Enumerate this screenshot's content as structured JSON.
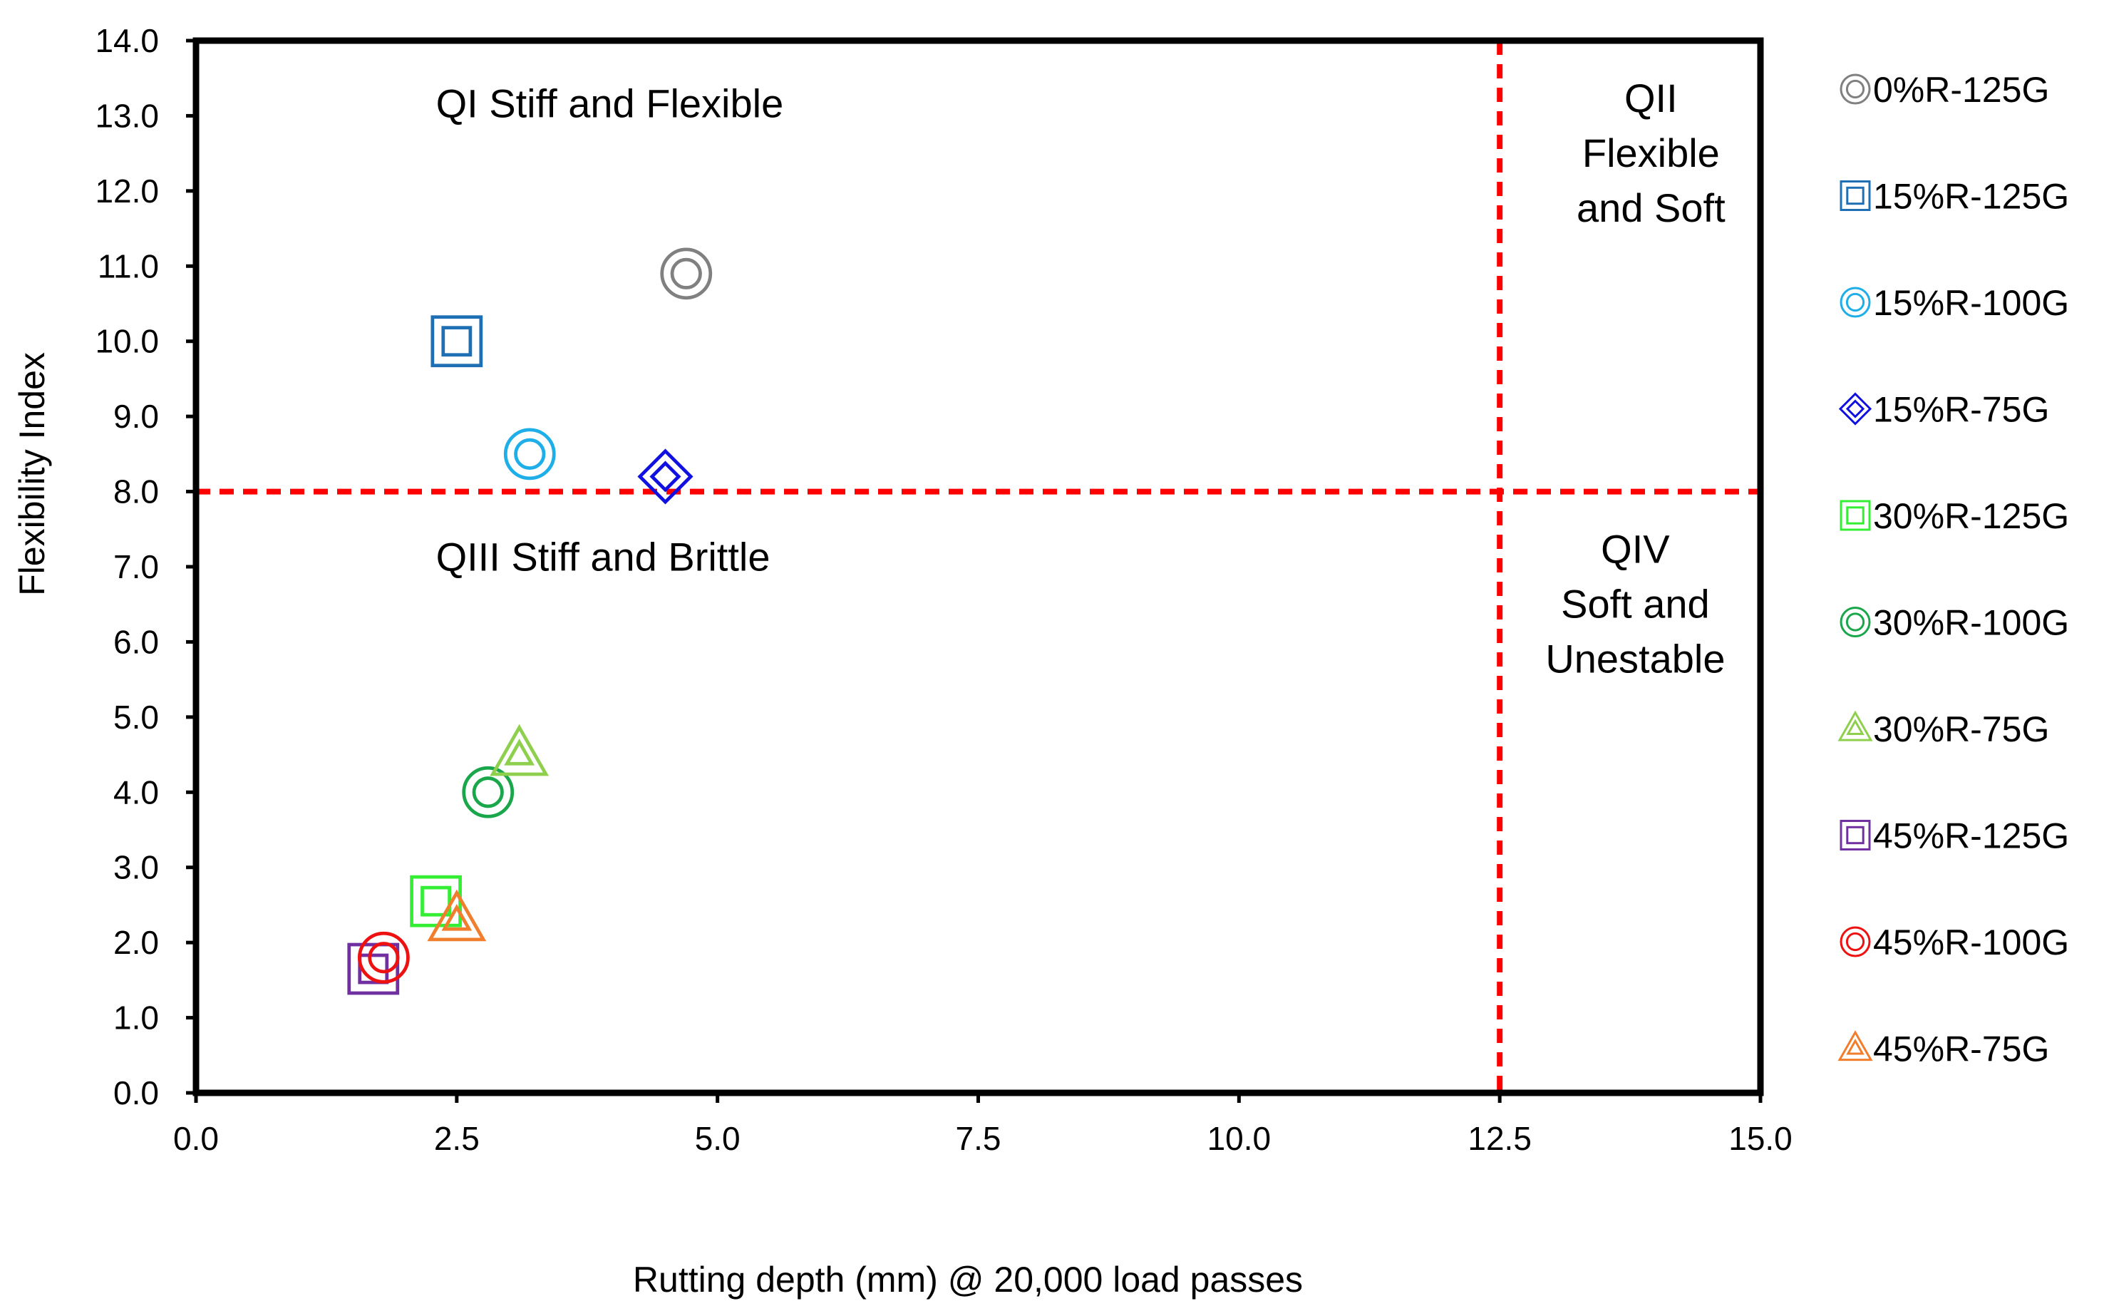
{
  "chart_data": {
    "type": "scatter",
    "title": "",
    "xlabel": "Rutting depth (mm) @ 20,000 load passes",
    "ylabel": "Flexibility Index",
    "xlim": [
      0,
      15
    ],
    "ylim": [
      0,
      14
    ],
    "xticks": [
      0,
      2.5,
      5,
      7.5,
      10,
      12.5,
      15
    ],
    "yticks": [
      0,
      1,
      2,
      3,
      4,
      5,
      6,
      7,
      8,
      9,
      10,
      11,
      12,
      13,
      14
    ],
    "x_tick_labels": [
      "0.0",
      "2.5",
      "5.0",
      "7.5",
      "10.0",
      "12.5",
      "15.0"
    ],
    "y_tick_labels": [
      "0.0",
      "1.0",
      "2.0",
      "3.0",
      "4.0",
      "5.0",
      "6.0",
      "7.0",
      "8.0",
      "9.0",
      "10.0",
      "11.0",
      "12.0",
      "13.0",
      "14.0"
    ],
    "grid": false,
    "legend_position": "right",
    "reference_lines": [
      {
        "orientation": "horizontal",
        "value": 8.0,
        "color": "#ff0000",
        "style": "dashed"
      },
      {
        "orientation": "vertical",
        "value": 12.5,
        "color": "#ff0000",
        "style": "dashed"
      }
    ],
    "quadrant_labels": [
      {
        "lines": [
          "QI Stiff and Flexible"
        ],
        "x": 2.3,
        "y": 12.98
      },
      {
        "lines": [
          "QII",
          "Flexible",
          "and Soft"
        ],
        "x": 13.95,
        "y": 13.05
      },
      {
        "lines": [
          "QIII Stiff and Brittle"
        ],
        "x": 2.3,
        "y": 6.95
      },
      {
        "lines": [
          "QIV",
          "Soft and",
          "Unestable"
        ],
        "x": 13.8,
        "y": 7.05
      }
    ],
    "series": [
      {
        "name": "0%R-125G",
        "marker": "circle",
        "color": "#808080",
        "x": [
          4.7
        ],
        "y": [
          10.9
        ]
      },
      {
        "name": "15%R-125G",
        "marker": "square",
        "color": "#1f6fb4",
        "x": [
          2.5
        ],
        "y": [
          10.0
        ]
      },
      {
        "name": "15%R-100G",
        "marker": "circle",
        "color": "#1eaee8",
        "x": [
          3.2
        ],
        "y": [
          8.5
        ]
      },
      {
        "name": "15%R-75G",
        "marker": "diamond",
        "color": "#1010e0",
        "x": [
          4.5
        ],
        "y": [
          8.2
        ]
      },
      {
        "name": "30%R-125G",
        "marker": "square",
        "color": "#33ee33",
        "x": [
          2.3
        ],
        "y": [
          2.55
        ]
      },
      {
        "name": "30%R-100G",
        "marker": "circle",
        "color": "#1aa64a",
        "x": [
          2.8
        ],
        "y": [
          4.0
        ]
      },
      {
        "name": "30%R-75G",
        "marker": "triangle",
        "color": "#8ed04e",
        "x": [
          3.1
        ],
        "y": [
          4.5
        ]
      },
      {
        "name": "45%R-125G",
        "marker": "square",
        "color": "#7030a0",
        "x": [
          1.7
        ],
        "y": [
          1.65
        ]
      },
      {
        "name": "45%R-100G",
        "marker": "circle",
        "color": "#ee1111",
        "x": [
          1.8
        ],
        "y": [
          1.8
        ]
      },
      {
        "name": "45%R-75G",
        "marker": "triangle",
        "color": "#f07e2c",
        "x": [
          2.5
        ],
        "y": [
          2.3
        ]
      }
    ]
  }
}
